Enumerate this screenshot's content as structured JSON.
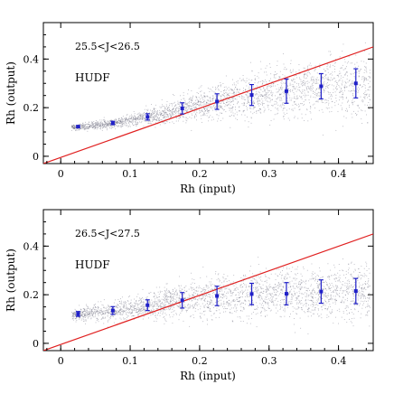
{
  "chart_data": [
    {
      "type": "scatter",
      "xlabel": "Rh (input)",
      "ylabel": "Rh (output)",
      "xlim": [
        -0.025,
        0.45
      ],
      "ylim": [
        -0.03,
        0.55
      ],
      "xticks": [
        "0",
        "0.1",
        "0.2",
        "0.3",
        "0.4"
      ],
      "yticks": [
        "0",
        "0.2",
        "0.4"
      ],
      "annotations": [
        "25.5<J<26.5",
        "HUDF"
      ],
      "reference_line": {
        "color": "#e02020",
        "points": [
          [
            -0.025,
            -0.03
          ],
          [
            0.45,
            0.45
          ]
        ]
      },
      "colors": {
        "points": "#2020c8",
        "scatter": "#7a7a8a",
        "line": "#e02020"
      },
      "binned_points": {
        "x": [
          0.025,
          0.075,
          0.125,
          0.175,
          0.225,
          0.275,
          0.325,
          0.375,
          0.425
        ],
        "y": [
          0.122,
          0.137,
          0.162,
          0.197,
          0.225,
          0.252,
          0.268,
          0.288,
          0.3
        ],
        "yerr": [
          0.004,
          0.007,
          0.013,
          0.023,
          0.032,
          0.043,
          0.05,
          0.052,
          0.06
        ]
      }
    },
    {
      "type": "scatter",
      "xlabel": "Rh (input)",
      "ylabel": "Rh (output)",
      "xlim": [
        -0.025,
        0.45
      ],
      "ylim": [
        -0.03,
        0.55
      ],
      "xticks": [
        "0",
        "0.1",
        "0.2",
        "0.3",
        "0.4"
      ],
      "yticks": [
        "0",
        "0.2",
        "0.4"
      ],
      "annotations": [
        "26.5<J<27.5",
        "HUDF"
      ],
      "reference_line": {
        "color": "#e02020",
        "points": [
          [
            -0.025,
            -0.03
          ],
          [
            0.45,
            0.45
          ]
        ]
      },
      "colors": {
        "points": "#2020c8",
        "scatter": "#7a7a8a",
        "line": "#e02020"
      },
      "binned_points": {
        "x": [
          0.025,
          0.075,
          0.125,
          0.175,
          0.225,
          0.275,
          0.325,
          0.375,
          0.425
        ],
        "y": [
          0.121,
          0.135,
          0.157,
          0.177,
          0.195,
          0.203,
          0.204,
          0.213,
          0.215
        ],
        "yerr": [
          0.01,
          0.016,
          0.022,
          0.032,
          0.04,
          0.044,
          0.046,
          0.048,
          0.052
        ]
      }
    }
  ]
}
